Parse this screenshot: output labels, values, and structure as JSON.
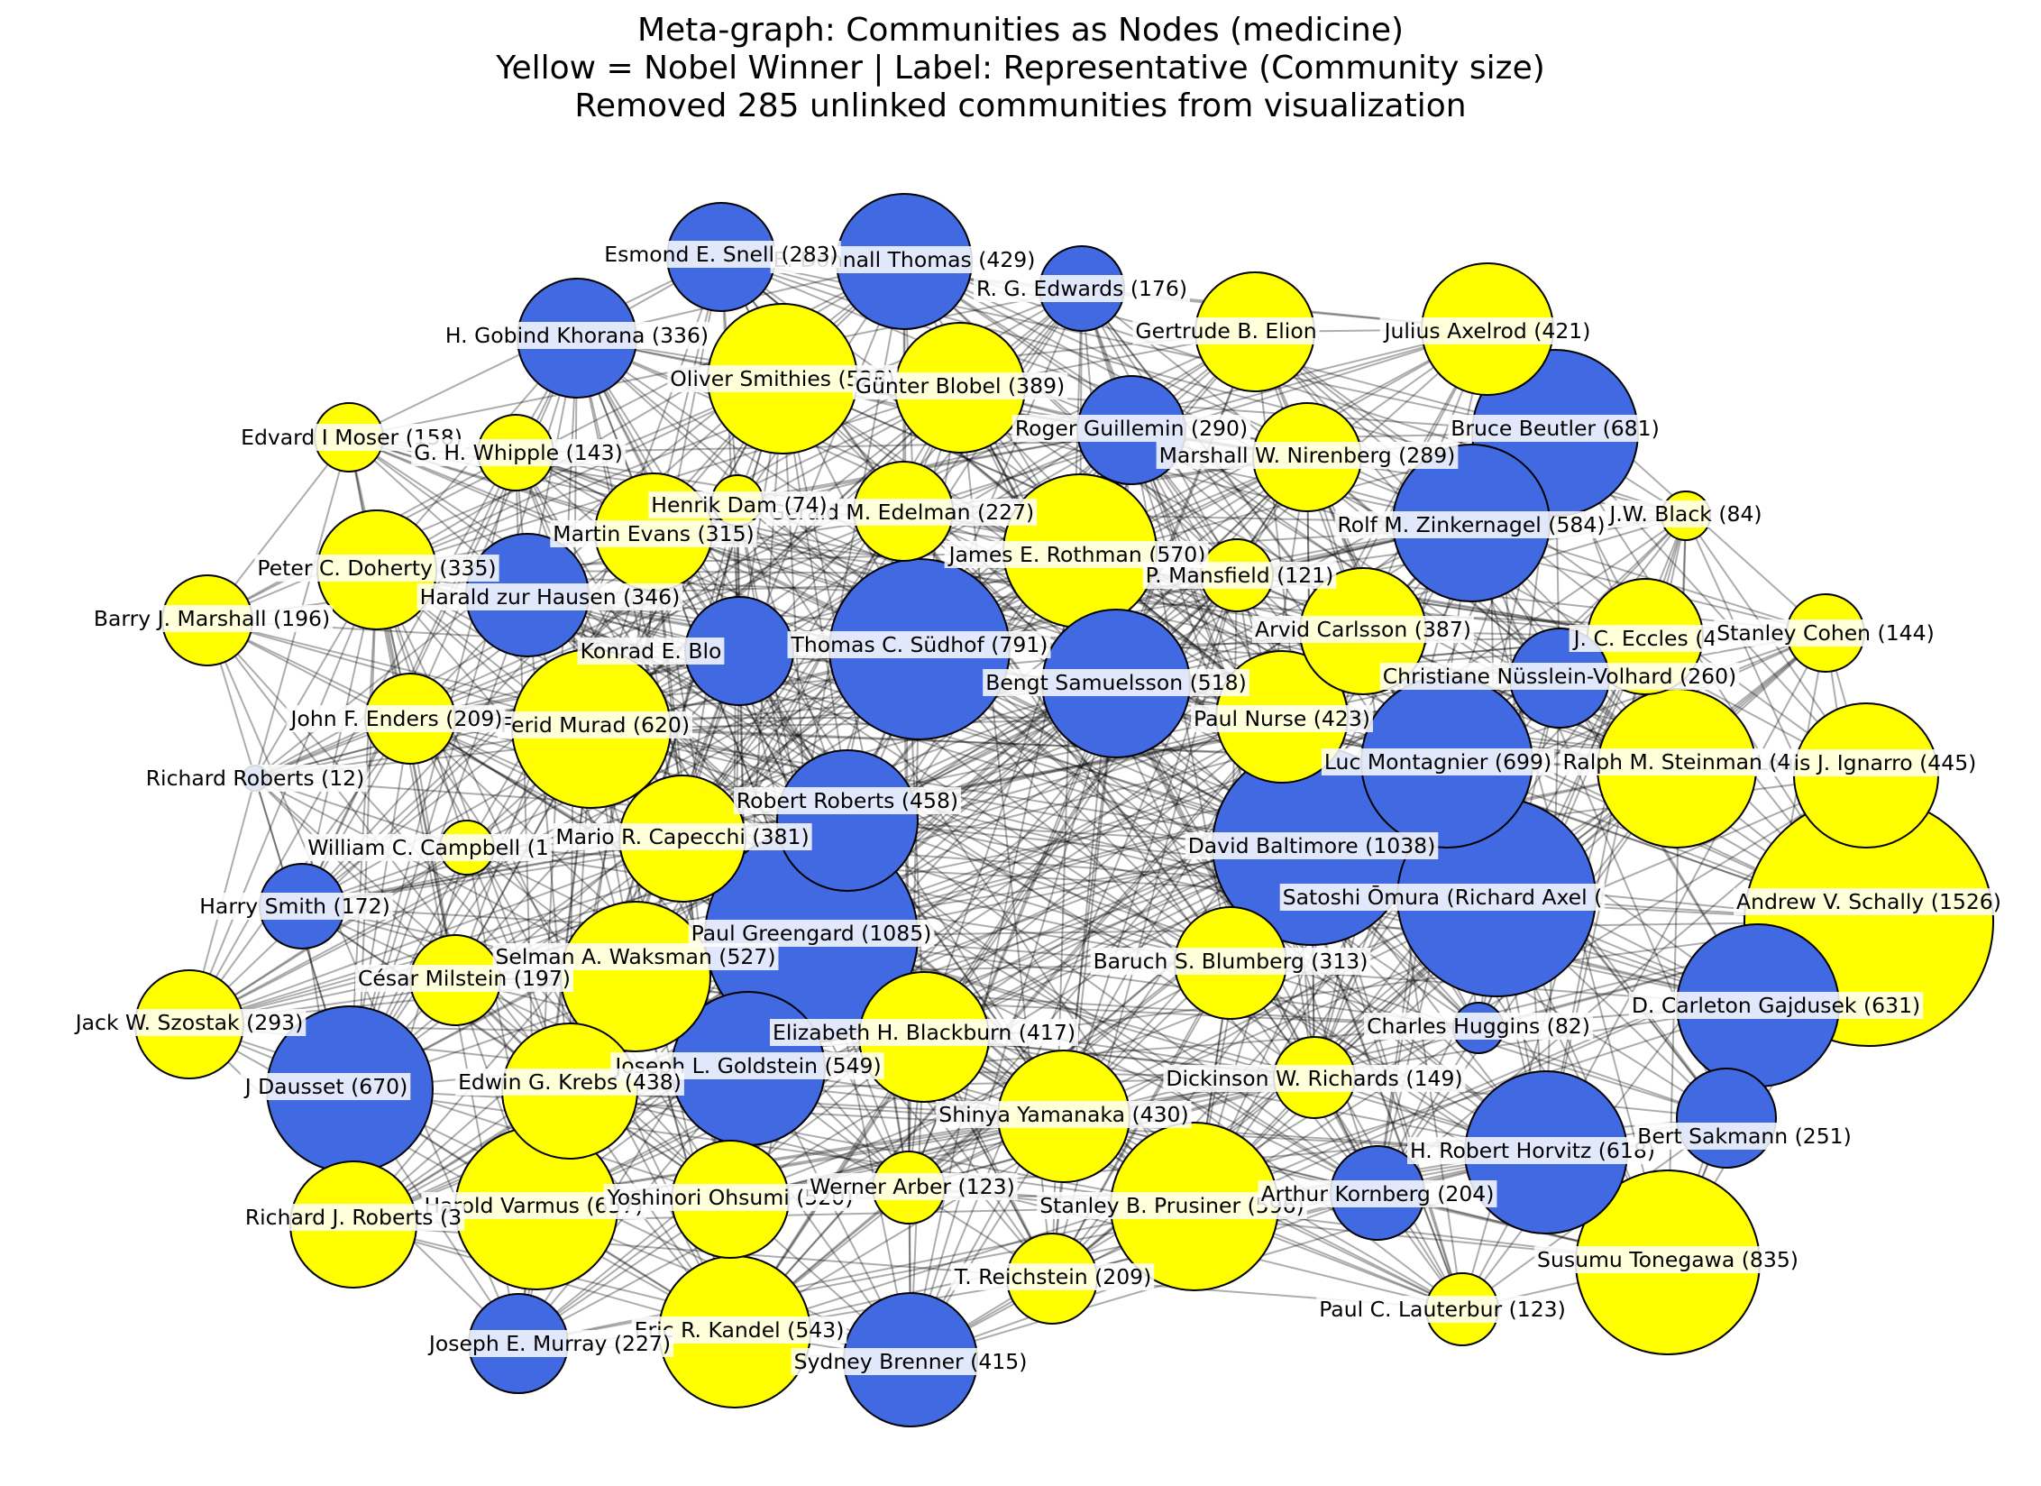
{
  "title": {
    "line1": "Meta-graph: Communities as Nodes (medicine)",
    "line2": "Yellow = Nobel Winner | Label: Representative (Community size)",
    "line3": "Removed 285 unlinked communities from visualization"
  },
  "colors": {
    "nobel": "#ffff00",
    "non_nobel": "#4169e1",
    "edge": "#000000",
    "outline": "#000000"
  },
  "nodes": [
    {
      "label": "Andrew V. Schally (1526)",
      "size": 1526,
      "nobel": true
    },
    {
      "label": "Paul Greengard (1085)",
      "size": 1085,
      "nobel": false
    },
    {
      "label": "David Baltimore (1038)",
      "size": 1038,
      "nobel": false
    },
    {
      "label": "Satoshi Ōmura (Richard Axel (",
      "size": null,
      "nobel": false
    },
    {
      "label": "Susumu Tonegawa (835)",
      "size": 835,
      "nobel": true
    },
    {
      "label": "Thomas C. Südhof (791)",
      "size": 791,
      "nobel": false
    },
    {
      "label": "Luc Montagnier (699)",
      "size": 699,
      "nobel": false
    },
    {
      "label": "Bruce Beutler (681)",
      "size": 681,
      "nobel": false
    },
    {
      "label": "J Dausset (670)",
      "size": 670,
      "nobel": false
    },
    {
      "label": "Harold Varmus (657)",
      "size": 657,
      "nobel": true
    },
    {
      "label": "D. Carleton Gajdusek (631)",
      "size": 631,
      "nobel": false
    },
    {
      "label": "Ferid Murad (620)",
      "size": 620,
      "nobel": true
    },
    {
      "label": "H. Robert Horvitz (618)",
      "size": 618,
      "nobel": false
    },
    {
      "label": "Stanley B. Prusiner (596)",
      "size": 596,
      "nobel": true
    },
    {
      "label": "Rolf M. Zinkernagel (584)",
      "size": 584,
      "nobel": false
    },
    {
      "label": "James E. Rothman (570)",
      "size": 570,
      "nobel": true
    },
    {
      "label": "Joseph L. Goldstein (549)",
      "size": 549,
      "nobel": false
    },
    {
      "label": "Eric R. Kandel (543)",
      "size": 543,
      "nobel": true
    },
    {
      "label": "Oliver Smithies (528)",
      "size": 528,
      "nobel": true
    },
    {
      "label": "Selman A. Waksman (527)",
      "size": 527,
      "nobel": true
    },
    {
      "label": "Bengt Samuelsson (518)",
      "size": 518,
      "nobel": false
    },
    {
      "label": "Yoshinori Ohsumi (520)",
      "size": 520,
      "nobel": true
    },
    {
      "label": "Robert Roberts (458)",
      "size": 458,
      "nobel": false
    },
    {
      "label": "Edwin G. Krebs (438)",
      "size": 438,
      "nobel": true
    },
    {
      "label": "Louis J. Ignarro (445)",
      "size": 445,
      "nobel": true
    },
    {
      "label": "Ralph M. Steinman (4",
      "size": null,
      "nobel": true
    },
    {
      "label": "Shinya Yamanaka (430)",
      "size": 430,
      "nobel": true
    },
    {
      "label": "E. Donnall Thomas (429)",
      "size": 429,
      "nobel": false
    },
    {
      "label": "Paul Nurse (423)",
      "size": 423,
      "nobel": true
    },
    {
      "label": "Julius Axelrod (421)",
      "size": 421,
      "nobel": true
    },
    {
      "label": "Elizabeth H. Blackburn (417)",
      "size": 417,
      "nobel": true
    },
    {
      "label": "Sydney Brenner (415)",
      "size": 415,
      "nobel": false
    },
    {
      "label": "Günter Blobel (389)",
      "size": 389,
      "nobel": true
    },
    {
      "label": "Arvid Carlsson (387)",
      "size": 387,
      "nobel": true
    },
    {
      "label": "Mario R. Capecchi (381)",
      "size": 381,
      "nobel": true
    },
    {
      "label": "Richard J. Roberts (3",
      "size": null,
      "nobel": true
    },
    {
      "label": "Gertrude B. Elion",
      "size": null,
      "nobel": true
    },
    {
      "label": "Harald zur Hausen (346)",
      "size": 346,
      "nobel": false
    },
    {
      "label": "H. Gobind Khorana (336)",
      "size": 336,
      "nobel": false
    },
    {
      "label": "Peter C. Doherty (335)",
      "size": 335,
      "nobel": true
    },
    {
      "label": "Martin Evans (315)",
      "size": 315,
      "nobel": true
    },
    {
      "label": "Baruch S. Blumberg (313)",
      "size": 313,
      "nobel": true
    },
    {
      "label": "Konrad E. Blo",
      "size": null,
      "nobel": false
    },
    {
      "label": "J. C. Eccles (4",
      "size": null,
      "nobel": true
    },
    {
      "label": "Jack W. Szostak (293)",
      "size": 293,
      "nobel": true
    },
    {
      "label": "Roger Guillemin (290)",
      "size": 290,
      "nobel": false
    },
    {
      "label": "Marshall W. Nirenberg (289)",
      "size": 289,
      "nobel": true
    },
    {
      "label": "Esmond E. Snell (283)",
      "size": 283,
      "nobel": false
    },
    {
      "label": "Christiane Nüsslein-Volhard (260)",
      "size": 260,
      "nobel": false
    },
    {
      "label": "Bert Sakmann (251)",
      "size": 251,
      "nobel": false
    },
    {
      "label": "Gerald M. Edelman (227)",
      "size": 227,
      "nobel": true
    },
    {
      "label": "Joseph E. Murray (227)",
      "size": 227,
      "nobel": false
    },
    {
      "label": "T. Reichstein (209)",
      "size": 209,
      "nobel": true
    },
    {
      "label": "John F. Enders (209)",
      "size": 209,
      "nobel": true
    },
    {
      "label": "Arthur Kornberg (204)",
      "size": 204,
      "nobel": false
    },
    {
      "label": "César Milstein (197)",
      "size": 197,
      "nobel": true
    },
    {
      "label": "Barry J. Marshall (196)",
      "size": 196,
      "nobel": true
    },
    {
      "label": "R. G. Edwards (176)",
      "size": 176,
      "nobel": false
    },
    {
      "label": "Harry Smith (172)",
      "size": 172,
      "nobel": false
    },
    {
      "label": "Edvard I Moser (158)",
      "size": 158,
      "nobel": true
    },
    {
      "label": "Dickinson W. Richards (149)",
      "size": 149,
      "nobel": true
    },
    {
      "label": "Stanley Cohen (144)",
      "size": 144,
      "nobel": true
    },
    {
      "label": "G. H. Whipple (143)",
      "size": 143,
      "nobel": true
    },
    {
      "label": "Werner Arber (123)",
      "size": 123,
      "nobel": true
    },
    {
      "label": "Paul C. Lauterbur (123)",
      "size": 123,
      "nobel": true
    },
    {
      "label": "P. Mansfield (121)",
      "size": 121,
      "nobel": true
    },
    {
      "label": "William C. Campbell (1",
      "size": null,
      "nobel": true
    },
    {
      "label": "J.W. Black (84)",
      "size": 84,
      "nobel": true
    },
    {
      "label": "Charles Huggins (82)",
      "size": 82,
      "nobel": false
    },
    {
      "label": "Henrik Dam (74)",
      "size": 74,
      "nobel": true
    },
    {
      "label": "Richard Roberts (12)",
      "size": 12,
      "nobel": false
    }
  ]
}
